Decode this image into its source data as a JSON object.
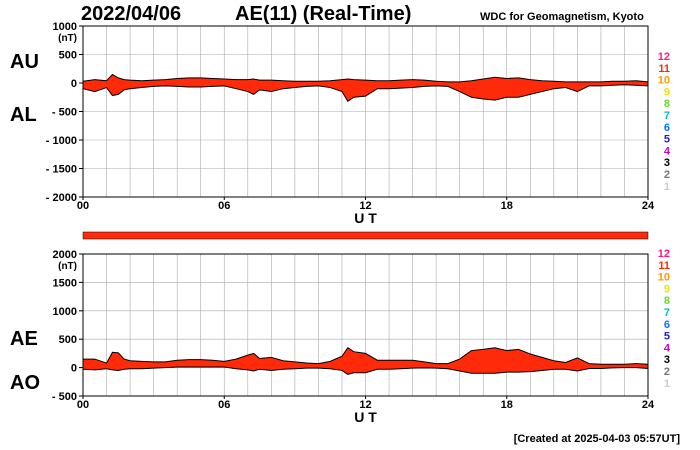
{
  "header": {
    "date": "2022/04/06",
    "title": "AE(11) (Real-Time)",
    "organization": "WDC for Geomagnetism, Kyoto"
  },
  "footer": {
    "created": "[Created at 2025-04-03 05:57UT]"
  },
  "color_key": {
    "labels": [
      "12",
      "11",
      "10",
      "9",
      "8",
      "7",
      "6",
      "5",
      "4",
      "3",
      "2",
      "1"
    ],
    "colors": [
      "#ff1a8c",
      "#ff2a00",
      "#ff9900",
      "#e6e600",
      "#66dd22",
      "#00c0c0",
      "#0077ff",
      "#2222cc",
      "#cc00cc",
      "#000000",
      "#777777",
      "#cccccc"
    ]
  },
  "colors": {
    "fill": "#ff2a0a",
    "grid": "#aaaaaa",
    "bar": "#ff2a0a"
  },
  "chart_data": [
    {
      "type": "area",
      "panel": "AU / AL",
      "series_labels": [
        "AU",
        "AL"
      ],
      "xlabel": "U T",
      "ylabel_unit": "(nT)",
      "x_ticks": [
        0,
        6,
        12,
        18,
        24
      ],
      "x_tick_labels": [
        "00",
        "06",
        "12",
        "18",
        "24"
      ],
      "ylim": [
        -2000,
        1000
      ],
      "y_ticks": [
        1000,
        500,
        0,
        -500,
        -1000,
        -1500,
        -2000
      ],
      "y_tick_labels": [
        "1000",
        "500",
        "0",
        "- 500",
        "- 1000",
        "- 1500",
        "- 2000"
      ],
      "grid": true,
      "x": [
        0,
        0.5,
        1,
        1.25,
        1.5,
        1.75,
        2,
        2.5,
        3,
        3.5,
        4,
        4.5,
        5,
        5.5,
        6,
        6.5,
        7,
        7.25,
        7.5,
        8,
        8.5,
        9,
        9.5,
        10,
        10.5,
        11,
        11.25,
        11.5,
        12,
        12.5,
        13,
        13.5,
        14,
        14.5,
        15,
        15.5,
        16,
        16.5,
        17,
        17.5,
        18,
        18.5,
        19,
        19.5,
        20,
        20.5,
        21,
        21.5,
        22,
        22.5,
        23,
        23.5,
        24
      ],
      "series": [
        {
          "name": "AU",
          "values": [
            30,
            60,
            40,
            150,
            90,
            60,
            50,
            40,
            50,
            60,
            80,
            90,
            90,
            80,
            70,
            60,
            60,
            70,
            50,
            50,
            40,
            30,
            30,
            30,
            40,
            60,
            70,
            60,
            50,
            40,
            40,
            50,
            60,
            50,
            30,
            20,
            20,
            40,
            70,
            100,
            80,
            90,
            60,
            40,
            30,
            20,
            20,
            20,
            20,
            30,
            30,
            40,
            20
          ]
        },
        {
          "name": "AL",
          "values": [
            -100,
            -150,
            -80,
            -220,
            -200,
            -120,
            -100,
            -80,
            -60,
            -50,
            -60,
            -70,
            -70,
            -60,
            -50,
            -100,
            -150,
            -200,
            -120,
            -150,
            -100,
            -80,
            -60,
            -50,
            -80,
            -150,
            -320,
            -250,
            -230,
            -100,
            -100,
            -90,
            -80,
            -60,
            -50,
            -60,
            -150,
            -250,
            -280,
            -300,
            -250,
            -250,
            -200,
            -150,
            -100,
            -80,
            -150,
            -50,
            -50,
            -40,
            -30,
            -40,
            -50
          ]
        }
      ]
    },
    {
      "type": "area",
      "panel": "AE / AO",
      "series_labels": [
        "AE",
        "AO"
      ],
      "xlabel": "U T",
      "ylabel_unit": "(nT)",
      "x_ticks": [
        0,
        6,
        12,
        18,
        24
      ],
      "x_tick_labels": [
        "00",
        "06",
        "12",
        "18",
        "24"
      ],
      "ylim": [
        -500,
        2000
      ],
      "y_ticks": [
        2000,
        1500,
        1000,
        500,
        0,
        -500
      ],
      "y_tick_labels": [
        "2000",
        "1500",
        "1000",
        "500",
        "0",
        "- 500"
      ],
      "grid": true,
      "x": [
        0,
        0.5,
        1,
        1.25,
        1.5,
        1.75,
        2,
        2.5,
        3,
        3.5,
        4,
        4.5,
        5,
        5.5,
        6,
        6.5,
        7,
        7.25,
        7.5,
        8,
        8.5,
        9,
        9.5,
        10,
        10.5,
        11,
        11.25,
        11.5,
        12,
        12.5,
        13,
        13.5,
        14,
        14.5,
        15,
        15.5,
        16,
        16.5,
        17,
        17.5,
        18,
        18.5,
        19,
        19.5,
        20,
        20.5,
        21,
        21.5,
        22,
        22.5,
        23,
        23.5,
        24
      ],
      "series": [
        {
          "name": "AE",
          "values": [
            150,
            150,
            80,
            270,
            260,
            150,
            120,
            110,
            100,
            100,
            130,
            140,
            140,
            130,
            110,
            150,
            220,
            250,
            160,
            180,
            120,
            100,
            80,
            70,
            110,
            200,
            350,
            280,
            250,
            130,
            130,
            130,
            130,
            100,
            70,
            70,
            150,
            300,
            320,
            350,
            300,
            320,
            240,
            180,
            120,
            90,
            170,
            70,
            60,
            60,
            60,
            70,
            60
          ]
        },
        {
          "name": "AO",
          "values": [
            -30,
            -40,
            -20,
            -40,
            -50,
            -30,
            -20,
            -20,
            -10,
            0,
            10,
            10,
            10,
            10,
            10,
            -20,
            -40,
            -60,
            -30,
            -50,
            -30,
            -20,
            -10,
            -10,
            -20,
            -50,
            -120,
            -90,
            -90,
            -30,
            -30,
            -20,
            -10,
            -5,
            -10,
            -20,
            -60,
            -100,
            -100,
            -100,
            -80,
            -80,
            -70,
            -50,
            -30,
            -30,
            -60,
            -15,
            -15,
            -5,
            0,
            0,
            -15
          ]
        }
      ]
    }
  ]
}
